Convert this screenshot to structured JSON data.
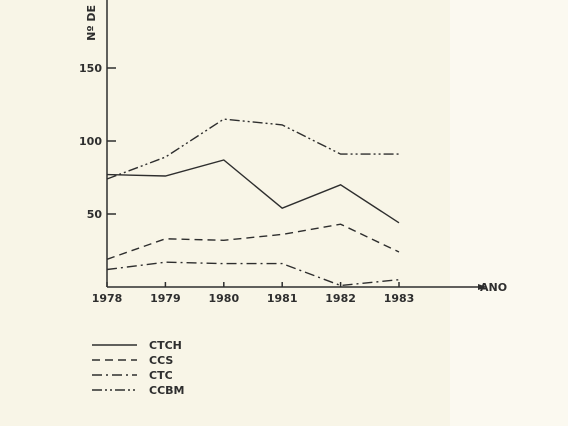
{
  "chart_data": {
    "type": "line",
    "title": "",
    "xlabel": "ANO",
    "ylabel": "Nº DE",
    "x": [
      "1978",
      "1979",
      "1980",
      "1981",
      "1982",
      "1983"
    ],
    "xticks": [
      "1978",
      "1979",
      "1980",
      "1981",
      "1982",
      "1983"
    ],
    "yticks": [
      "50",
      "100",
      "150"
    ],
    "ylim": [
      0,
      195
    ],
    "grid": false,
    "legend_position": "bottom-left",
    "series": [
      {
        "name": "CTCH",
        "values": [
          77,
          76,
          87,
          54,
          70,
          44
        ],
        "dash": "solid"
      },
      {
        "name": "CCS",
        "values": [
          19,
          33,
          32,
          36,
          43,
          24
        ],
        "dash": "dashed"
      },
      {
        "name": "CTC",
        "values": [
          12,
          17,
          16,
          16,
          1,
          5
        ],
        "dash": "dash-dot"
      },
      {
        "name": "CCBM",
        "values": [
          74,
          89,
          115,
          111,
          91,
          91
        ],
        "dash": "dash-dot-dot"
      }
    ]
  }
}
